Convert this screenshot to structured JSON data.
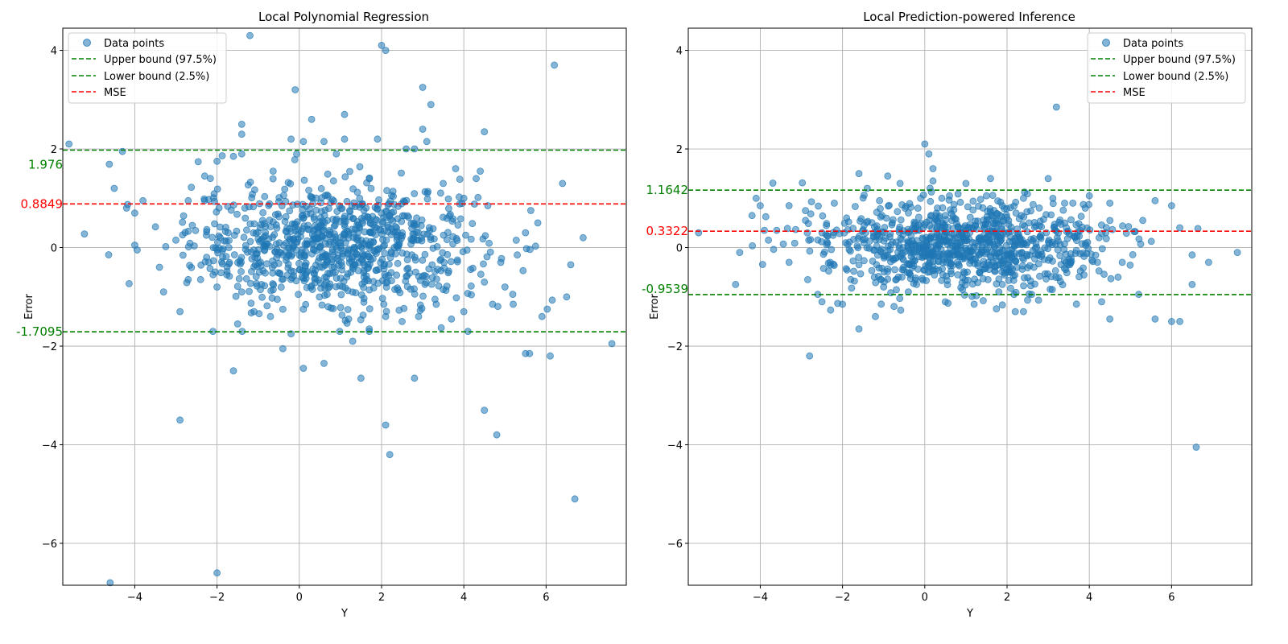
{
  "chart_data": [
    {
      "type": "scatter",
      "title": "Local Polynomial Regression",
      "xlabel": "Y",
      "ylabel": "Error",
      "xlim": [
        -5.75,
        7.95
      ],
      "ylim": [
        -6.85,
        4.45
      ],
      "xticks": [
        -4,
        -2,
        0,
        2,
        4,
        6
      ],
      "yticks": [
        -6,
        -4,
        -2,
        0,
        2,
        4
      ],
      "xtick_labels": [
        "−4",
        "−2",
        "0",
        "2",
        "4",
        "6"
      ],
      "ytick_labels": [
        "−6",
        "−4",
        "−2",
        "0",
        "2",
        "4"
      ],
      "grid": true,
      "legend_position": "top-left",
      "legend": [
        {
          "label": "Data points",
          "kind": "marker",
          "color": "#1f77b4"
        },
        {
          "label": "Upper bound (97.5%)",
          "kind": "dashed",
          "color": "#008000"
        },
        {
          "label": "Lower bound (2.5%)",
          "kind": "dashed",
          "color": "#008000"
        },
        {
          "label": "MSE",
          "kind": "dashed",
          "color": "#ff0000"
        }
      ],
      "hlines": [
        {
          "name": "upper",
          "value": 1.976,
          "label": "1.976",
          "color": "#008000"
        },
        {
          "name": "mse",
          "value": 0.8849,
          "label": "0.8849",
          "color": "#ff0000"
        },
        {
          "name": "lower",
          "value": -1.7095,
          "label": "-1.7095",
          "color": "#008000"
        }
      ],
      "point_color": "#1f77b4",
      "n_points": 1000,
      "points": [
        [
          -5.6,
          2.1
        ],
        [
          -4.5,
          1.2
        ],
        [
          -4.0,
          0.7
        ],
        [
          -4.0,
          0.05
        ],
        [
          -3.8,
          0.95
        ],
        [
          -4.2,
          0.8
        ],
        [
          -3.3,
          -0.9
        ],
        [
          -3.4,
          -0.4
        ],
        [
          -3.0,
          0.15
        ],
        [
          -2.9,
          -1.3
        ],
        [
          -2.9,
          -3.5
        ],
        [
          -2.0,
          -6.6
        ],
        [
          -4.6,
          -6.8
        ],
        [
          -4.3,
          1.95
        ],
        [
          -2.1,
          -1.7
        ],
        [
          -1.6,
          -2.5
        ],
        [
          -1.2,
          4.3
        ],
        [
          -1.4,
          2.5
        ],
        [
          -1.4,
          2.3
        ],
        [
          -0.1,
          3.2
        ],
        [
          0.3,
          2.6
        ],
        [
          1.1,
          2.7
        ],
        [
          2.0,
          4.1
        ],
        [
          2.1,
          4.0
        ],
        [
          3.0,
          3.25
        ],
        [
          3.2,
          2.9
        ],
        [
          4.5,
          2.35
        ],
        [
          6.2,
          3.7
        ],
        [
          6.4,
          1.3
        ],
        [
          6.9,
          0.2
        ],
        [
          7.6,
          -1.95
        ],
        [
          6.1,
          -2.2
        ],
        [
          6.7,
          -5.1
        ],
        [
          4.8,
          -3.8
        ],
        [
          4.5,
          -3.3
        ],
        [
          2.1,
          -3.6
        ],
        [
          2.2,
          -4.2
        ],
        [
          2.8,
          -2.65
        ],
        [
          1.5,
          -2.65
        ],
        [
          0.1,
          -2.45
        ],
        [
          -0.4,
          -2.05
        ],
        [
          0.6,
          -2.35
        ],
        [
          5.6,
          -2.15
        ],
        [
          5.5,
          -2.15
        ],
        [
          5.9,
          -1.4
        ],
        [
          6.5,
          -1.0
        ],
        [
          6.6,
          -0.35
        ],
        [
          5.8,
          0.5
        ],
        [
          5.5,
          0.3
        ],
        [
          5.3,
          -0.15
        ],
        [
          5.0,
          -0.8
        ],
        [
          5.2,
          -1.15
        ],
        [
          4.7,
          -1.15
        ],
        [
          4.5,
          -0.7
        ],
        [
          4.1,
          -1.7
        ],
        [
          4.0,
          -1.3
        ],
        [
          3.7,
          -1.45
        ],
        [
          3.5,
          -0.85
        ],
        [
          3.8,
          1.6
        ],
        [
          4.3,
          1.4
        ],
        [
          4.0,
          1.0
        ],
        [
          4.4,
          1.55
        ],
        [
          3.5,
          1.3
        ],
        [
          3.1,
          2.15
        ],
        [
          3.0,
          2.4
        ],
        [
          2.6,
          2.0
        ],
        [
          2.8,
          2.0
        ],
        [
          1.9,
          2.2
        ],
        [
          1.1,
          2.2
        ],
        [
          0.6,
          2.15
        ],
        [
          -0.2,
          2.2
        ],
        [
          0.1,
          2.15
        ],
        [
          -1.4,
          1.9
        ],
        [
          -1.6,
          1.85
        ],
        [
          -2.0,
          1.75
        ],
        [
          -2.3,
          1.45
        ],
        [
          -2.7,
          0.95
        ],
        [
          -2.6,
          0.45
        ],
        [
          -2.2,
          -0.3
        ],
        [
          -2.7,
          -0.65
        ],
        [
          -2.4,
          -0.65
        ],
        [
          -2.0,
          -0.8
        ],
        [
          -1.4,
          -0.9
        ],
        [
          -1.1,
          -1.3
        ],
        [
          -0.7,
          -1.4
        ],
        [
          -0.4,
          -1.25
        ],
        [
          0.1,
          -1.25
        ],
        [
          0.7,
          -1.2
        ],
        [
          1.2,
          -1.45
        ],
        [
          1.7,
          -1.65
        ],
        [
          2.1,
          -1.4
        ],
        [
          2.5,
          -1.5
        ],
        [
          2.9,
          -1.4
        ],
        [
          3.3,
          -1.05
        ],
        [
          1.3,
          -1.9
        ],
        [
          -0.2,
          -1.75
        ],
        [
          -1.5,
          -1.55
        ]
      ]
    },
    {
      "type": "scatter",
      "title": "Local Prediction-powered Inference",
      "xlabel": "Y",
      "ylabel": "Error",
      "xlim": [
        -5.75,
        7.95
      ],
      "ylim": [
        -6.85,
        4.45
      ],
      "xticks": [
        -4,
        -2,
        0,
        2,
        4,
        6
      ],
      "yticks": [
        -6,
        -4,
        -2,
        0,
        2,
        4
      ],
      "xtick_labels": [
        "−4",
        "−2",
        "0",
        "2",
        "4",
        "6"
      ],
      "ytick_labels": [
        "−6",
        "−4",
        "−2",
        "0",
        "2",
        "4"
      ],
      "grid": true,
      "legend_position": "top-right",
      "legend": [
        {
          "label": "Data points",
          "kind": "marker",
          "color": "#1f77b4"
        },
        {
          "label": "Upper bound (97.5%)",
          "kind": "dashed",
          "color": "#008000"
        },
        {
          "label": "Lower bound (2.5%)",
          "kind": "dashed",
          "color": "#008000"
        },
        {
          "label": "MSE",
          "kind": "dashed",
          "color": "#ff0000"
        }
      ],
      "hlines": [
        {
          "name": "upper",
          "value": 1.1642,
          "label": "1.1642",
          "color": "#008000"
        },
        {
          "name": "mse",
          "value": 0.3322,
          "label": "0.3322",
          "color": "#ff0000"
        },
        {
          "name": "lower",
          "value": -0.9539,
          "label": "-0.9539",
          "color": "#008000"
        }
      ],
      "point_color": "#1f77b4",
      "n_points": 1000,
      "points": [
        [
          -5.5,
          0.3
        ],
        [
          -4.5,
          -0.1
        ],
        [
          -4.6,
          -0.75
        ],
        [
          -4.2,
          0.65
        ],
        [
          -4.1,
          1.0
        ],
        [
          -4.0,
          0.85
        ],
        [
          -3.9,
          0.35
        ],
        [
          -3.8,
          0.15
        ],
        [
          -3.6,
          0.35
        ],
        [
          -3.3,
          0.85
        ],
        [
          -3.3,
          -0.3
        ],
        [
          -2.9,
          0.55
        ],
        [
          -2.9,
          0.75
        ],
        [
          -2.8,
          -2.2
        ],
        [
          -2.5,
          -1.1
        ],
        [
          -2.6,
          -0.95
        ],
        [
          -2.0,
          -1.15
        ],
        [
          -1.6,
          -1.65
        ],
        [
          -1.2,
          -1.4
        ],
        [
          -1.6,
          1.5
        ],
        [
          -1.4,
          1.2
        ],
        [
          -0.9,
          1.45
        ],
        [
          -0.6,
          1.3
        ],
        [
          0.0,
          2.1
        ],
        [
          0.1,
          1.9
        ],
        [
          0.2,
          1.6
        ],
        [
          0.2,
          1.35
        ],
        [
          1.0,
          1.3
        ],
        [
          1.6,
          1.4
        ],
        [
          3.0,
          1.4
        ],
        [
          3.2,
          2.85
        ],
        [
          4.0,
          1.05
        ],
        [
          4.5,
          0.9
        ],
        [
          5.3,
          0.55
        ],
        [
          5.6,
          0.95
        ],
        [
          6.0,
          0.85
        ],
        [
          6.2,
          0.4
        ],
        [
          6.5,
          -0.15
        ],
        [
          6.9,
          -0.3
        ],
        [
          7.6,
          -0.1
        ],
        [
          6.2,
          -1.5
        ],
        [
          6.0,
          -1.5
        ],
        [
          5.6,
          -1.45
        ],
        [
          4.5,
          -1.45
        ],
        [
          4.3,
          -1.1
        ],
        [
          5.2,
          -0.95
        ],
        [
          6.5,
          -0.75
        ],
        [
          6.6,
          -4.05
        ],
        [
          4.7,
          -0.6
        ],
        [
          4.8,
          -0.3
        ],
        [
          4.2,
          -0.3
        ],
        [
          4.4,
          0.3
        ],
        [
          3.9,
          0.8
        ],
        [
          3.6,
          0.9
        ],
        [
          2.4,
          -1.3
        ],
        [
          2.2,
          -1.3
        ],
        [
          1.2,
          -1.15
        ],
        [
          0.5,
          -1.1
        ],
        [
          -0.4,
          -0.9
        ],
        [
          -1.0,
          -0.8
        ],
        [
          -1.8,
          -0.65
        ],
        [
          -2.3,
          -0.3
        ],
        [
          -2.5,
          0.3
        ],
        [
          -2.2,
          0.9
        ],
        [
          -1.9,
          0.6
        ],
        [
          -1.1,
          0.95
        ],
        [
          0.6,
          1.05
        ],
        [
          1.5,
          1.05
        ],
        [
          2.4,
          1.0
        ],
        [
          3.4,
          0.9
        ],
        [
          3.1,
          -0.85
        ],
        [
          2.6,
          -0.95
        ],
        [
          1.8,
          -0.9
        ],
        [
          -0.2,
          -0.75
        ],
        [
          -1.6,
          -0.35
        ]
      ]
    }
  ]
}
